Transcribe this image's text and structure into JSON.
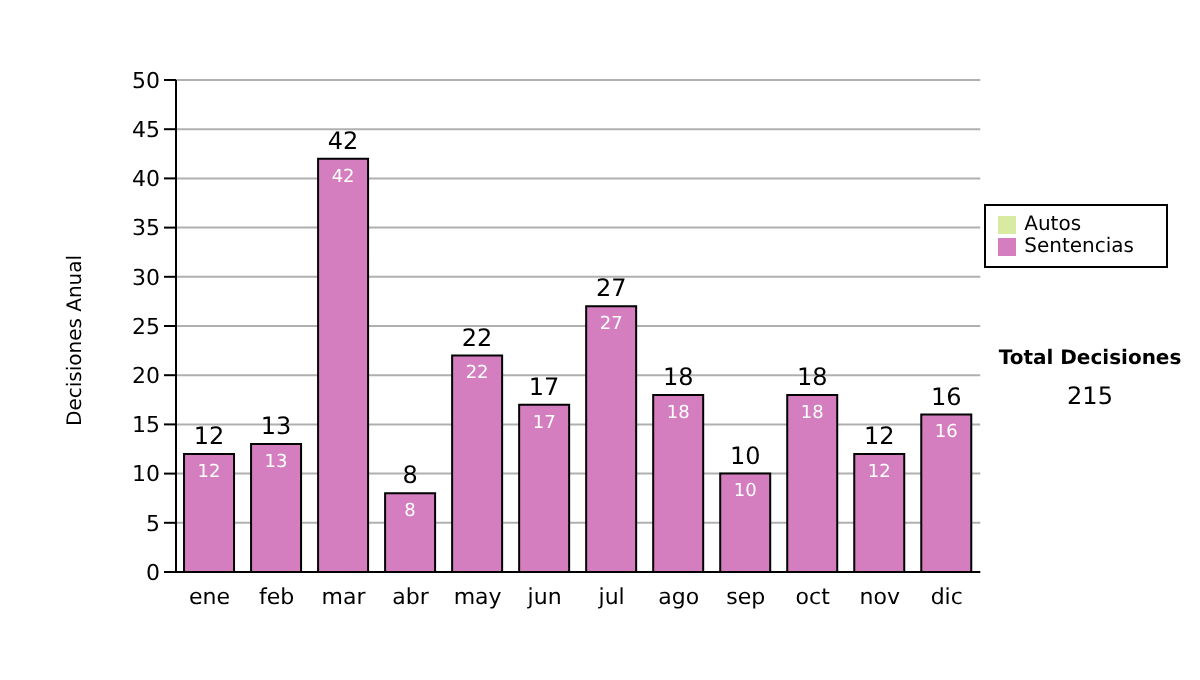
{
  "chart_data": {
    "type": "bar",
    "stacked": true,
    "ylabel": "Decisiones Anual",
    "categories": [
      "ene",
      "feb",
      "mar",
      "abr",
      "may",
      "jun",
      "jul",
      "ago",
      "sep",
      "oct",
      "nov",
      "dic"
    ],
    "series": [
      {
        "name": "Sentencias",
        "color": "#d47ec0",
        "values": [
          12,
          13,
          42,
          8,
          22,
          17,
          27,
          18,
          10,
          18,
          12,
          16
        ],
        "value_labels": [
          "12",
          "13",
          "42",
          "8",
          "22",
          "17",
          "27",
          "18",
          "10",
          "18",
          "12",
          "16"
        ]
      },
      {
        "name": "Autos",
        "color": "#d9eba3",
        "values": [
          null,
          null,
          null,
          null,
          null,
          null,
          null,
          null,
          null,
          null,
          null,
          null
        ]
      }
    ],
    "totals": [
      "12",
      "13",
      "42",
      "8",
      "22",
      "17",
      "27",
      "18",
      "10",
      "18",
      "12",
      "16"
    ],
    "ylim": [
      0,
      50
    ],
    "yticks": [
      0,
      5,
      10,
      15,
      20,
      25,
      30,
      35,
      40,
      45,
      50
    ],
    "grid": "y",
    "legend": "right",
    "annotations": [
      "Total Decisiones",
      "215"
    ]
  }
}
